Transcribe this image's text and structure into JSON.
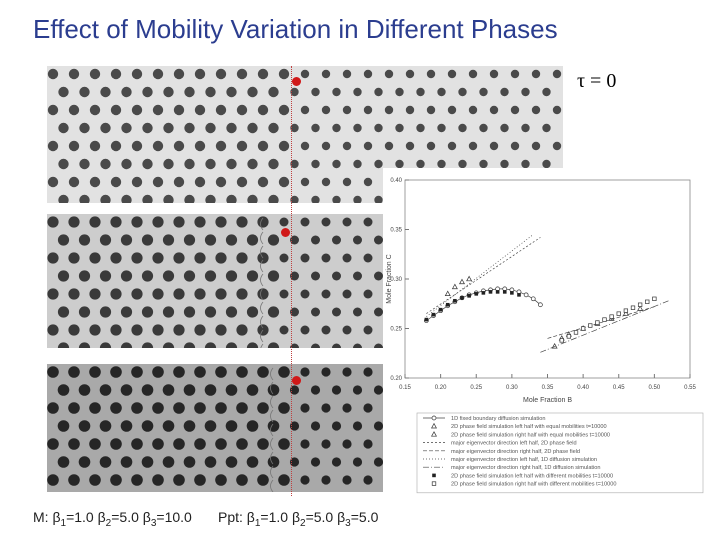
{
  "slide": {
    "title": "Effect of Mobility Variation in Different Phases",
    "time_label": "τ = 0",
    "captions": {
      "matrix": {
        "prefix": "M: ",
        "b1": "=1.0 ",
        "b2": "=5.0 ",
        "b3": "=10.0"
      },
      "precipitate": {
        "prefix": "Ppt: ",
        "b1": "=1.0 ",
        "b2": "=5.0 ",
        "b3": "=5.0"
      }
    },
    "beta_symbol": "β",
    "subscripts": [
      "1",
      "2",
      "3"
    ]
  },
  "microstructures": [
    {
      "id": "panel-1",
      "shade": "#e2e2e2",
      "dot": "#4a4a4a"
    },
    {
      "id": "panel-2",
      "shade": "#cdcdcd",
      "dot": "#3a3a3a"
    },
    {
      "id": "panel-3",
      "shade": "#a9a9a9",
      "dot": "#262626"
    }
  ],
  "colors": {
    "title": "#2b3d8f",
    "marker": "#d01818"
  },
  "chart_data": {
    "type": "scatter",
    "xlabel": "Mole Fraction B",
    "ylabel": "Mole Fraction C",
    "xlim": [
      0.15,
      0.55
    ],
    "ylim": [
      0.2,
      0.4
    ],
    "xticks": [
      "0.15",
      "0.20",
      "0.25",
      "0.30",
      "0.35",
      "0.40",
      "0.45",
      "0.50",
      "0.55"
    ],
    "yticks": [
      "0.20",
      "0.25",
      "0.30",
      "0.35",
      "0.40"
    ],
    "grid": false,
    "legend_position": "bottom",
    "legend": [
      "1D fixed boundary diffusion simulation",
      "2D phase field simulation left half with equal mobilities t=10000",
      "2D phase field simulation right half with equal mobilities t=10000",
      "major eigenvector direction left half, 2D phase field",
      "major eigenvector direction right half, 2D phase field",
      "major eigenvector direction left half, 1D diffusion simulation",
      "major eigenvector direction right half, 1D diffusion simulation",
      "2D phase field simulation left half with different mobilities t=10000",
      "2D phase field simulation right half with different mobilities t=10000"
    ],
    "series": [
      {
        "x": [
          0.18,
          0.19,
          0.2,
          0.21,
          0.22,
          0.23,
          0.24,
          0.25,
          0.26,
          0.27,
          0.28,
          0.29,
          0.3,
          0.31,
          0.32,
          0.33,
          0.34
        ],
        "y": [
          0.258,
          0.263,
          0.268,
          0.273,
          0.277,
          0.281,
          0.284,
          0.286,
          0.288,
          0.289,
          0.29,
          0.29,
          0.289,
          0.287,
          0.284,
          0.28,
          0.274
        ]
      },
      {
        "x": [
          0.21,
          0.22,
          0.23,
          0.24
        ],
        "y": [
          0.285,
          0.292,
          0.297,
          0.3
        ]
      },
      {
        "x": [
          0.36,
          0.37,
          0.38,
          0.4,
          0.42,
          0.44,
          0.46,
          0.48
        ],
        "y": [
          0.232,
          0.24,
          0.244,
          0.25,
          0.255,
          0.26,
          0.265,
          0.27
        ]
      },
      {
        "x": [
          0.18,
          0.34
        ],
        "y": [
          0.265,
          0.342
        ]
      },
      {
        "x": [
          0.35,
          0.5
        ],
        "y": [
          0.24,
          0.272
        ]
      },
      {
        "x": [
          0.18,
          0.33
        ],
        "y": [
          0.262,
          0.345
        ]
      },
      {
        "x": [
          0.34,
          0.52
        ],
        "y": [
          0.226,
          0.278
        ]
      },
      {
        "x": [
          0.18,
          0.19,
          0.2,
          0.21,
          0.22,
          0.23,
          0.24,
          0.25,
          0.26,
          0.27,
          0.28,
          0.29,
          0.3,
          0.31
        ],
        "y": [
          0.259,
          0.264,
          0.269,
          0.274,
          0.278,
          0.281,
          0.283,
          0.285,
          0.286,
          0.287,
          0.287,
          0.287,
          0.286,
          0.284
        ]
      },
      {
        "x": [
          0.37,
          0.38,
          0.39,
          0.4,
          0.41,
          0.42,
          0.43,
          0.44,
          0.45,
          0.46,
          0.47,
          0.48,
          0.49,
          0.5
        ],
        "y": [
          0.238,
          0.242,
          0.246,
          0.25,
          0.253,
          0.256,
          0.259,
          0.262,
          0.265,
          0.268,
          0.271,
          0.274,
          0.277,
          0.28
        ]
      }
    ]
  }
}
